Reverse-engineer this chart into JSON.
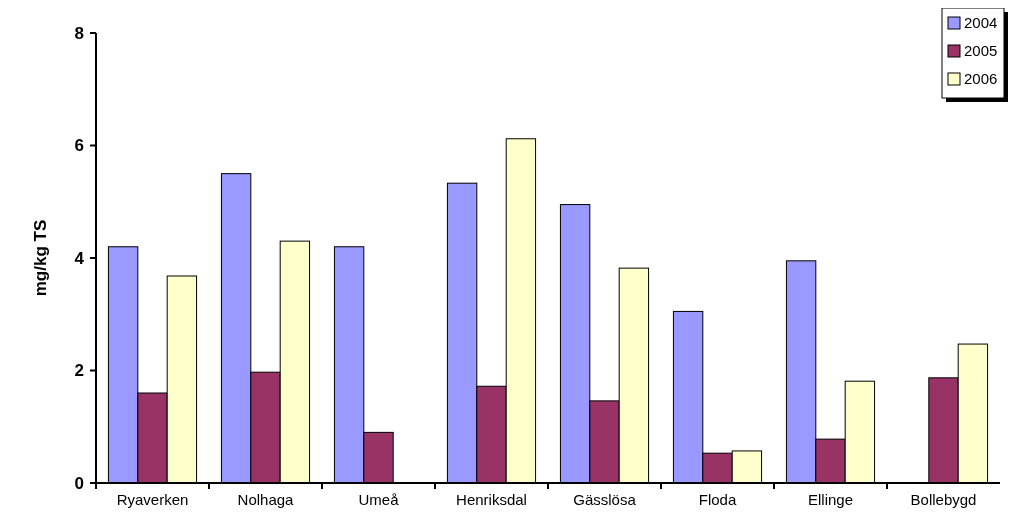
{
  "chart_data": {
    "type": "bar",
    "ylabel": "mg/kg TS",
    "categories": [
      "Ryaverken",
      "Nolhaga",
      "Umeå",
      "Henriksdal",
      "Gässlösa",
      "Floda",
      "Ellinge",
      "Bollebygd"
    ],
    "series": [
      {
        "name": "2004",
        "color": "#9999ff",
        "values": [
          4.2,
          5.5,
          4.2,
          5.33,
          4.95,
          3.05,
          3.95,
          null
        ]
      },
      {
        "name": "2005",
        "color": "#993366",
        "values": [
          1.6,
          1.97,
          0.9,
          1.72,
          1.46,
          0.53,
          0.78,
          1.87
        ]
      },
      {
        "name": "2006",
        "color": "#ffffcc",
        "values": [
          3.68,
          4.3,
          null,
          6.12,
          3.82,
          0.57,
          1.81,
          2.47
        ]
      }
    ],
    "ylim": [
      0,
      8
    ],
    "yticks": [
      0,
      2,
      4,
      6,
      8
    ],
    "grid": false,
    "legend": "top right"
  }
}
